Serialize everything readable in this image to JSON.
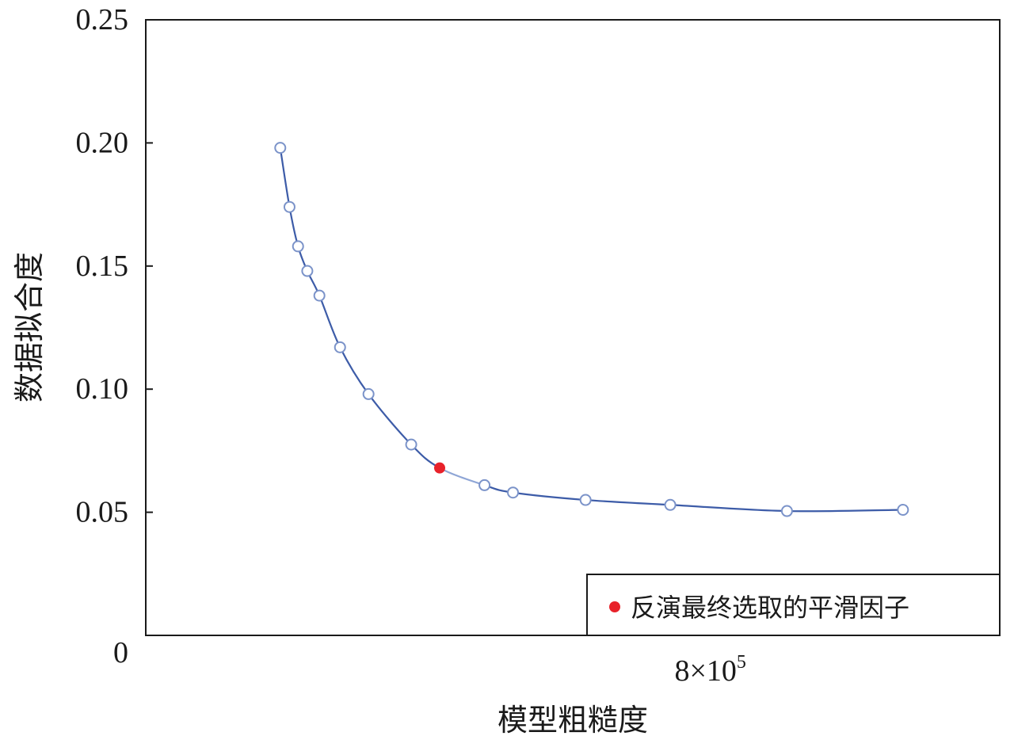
{
  "chart_data": {
    "type": "line",
    "title": "",
    "xlabel": "模型粗糙度",
    "ylabel": "数据拟合度",
    "xlim": [
      0,
      1200000
    ],
    "ylim": [
      0,
      0.25
    ],
    "grid": false,
    "x_ticks": [
      {
        "value": 800000,
        "label_base": "8×10",
        "label_exp": "5"
      }
    ],
    "y_ticks": [
      {
        "value": 0,
        "label": "0"
      },
      {
        "value": 0.05,
        "label": "0.05"
      },
      {
        "value": 0.1,
        "label": "0.10"
      },
      {
        "value": 0.15,
        "label": "0.15"
      },
      {
        "value": 0.2,
        "label": "0.20"
      },
      {
        "value": 0.25,
        "label": "0.25"
      }
    ],
    "series": [
      {
        "x": [
          189000,
          202000,
          214000,
          227000,
          244000,
          273000,
          313000,
          373000,
          413000,
          476000,
          516000,
          618000,
          737000,
          901000,
          1064000
        ],
        "y": [
          0.198,
          0.174,
          0.158,
          0.148,
          0.138,
          0.117,
          0.098,
          0.0775,
          0.068,
          0.061,
          0.058,
          0.055,
          0.053,
          0.0505,
          0.051
        ],
        "highlight_index": 8
      }
    ],
    "legend": {
      "position": "bottom-right",
      "entries": [
        {
          "label": "反演最终选取的平滑因子",
          "marker": "filled-circle"
        }
      ]
    },
    "colors": {
      "line": "#3d5ca8",
      "line_highlight_segment": "#8fa6d6",
      "marker_stroke": "#7b93c9",
      "highlight": "#e8222a",
      "axis": "#1a1a1a"
    }
  }
}
